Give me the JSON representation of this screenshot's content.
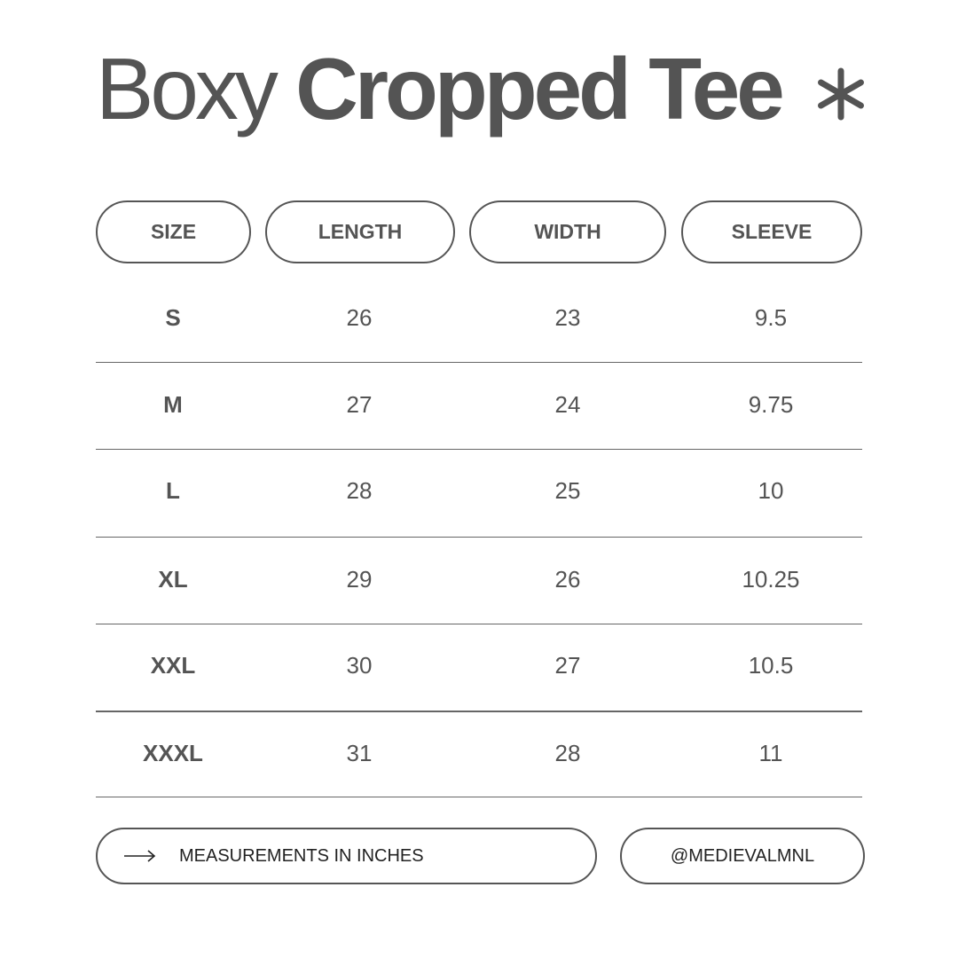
{
  "title": {
    "light": "Boxy",
    "bold": "Cropped Tee",
    "icon": "asterisk-icon"
  },
  "columns": [
    "SIZE",
    "LENGTH",
    "WIDTH",
    "SLEEVE"
  ],
  "rows": [
    [
      "S",
      "26",
      "23",
      "9.5"
    ],
    [
      "M",
      "27",
      "24",
      "9.75"
    ],
    [
      "L",
      "28",
      "25",
      "10"
    ],
    [
      "XL",
      "29",
      "26",
      "10.25"
    ],
    [
      "XXL",
      "30",
      "27",
      "10.5"
    ],
    [
      "XXXL",
      "31",
      "28",
      "11"
    ]
  ],
  "footer": {
    "note": "MEASUREMENTS IN INCHES",
    "handle": "@MEDIEVALMNL",
    "icon": "arrow-right-icon"
  },
  "colors": {
    "text": "#545454",
    "background": "#ffffff"
  }
}
